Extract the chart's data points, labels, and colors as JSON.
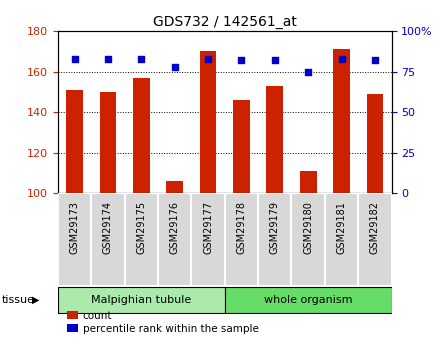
{
  "title": "GDS732 / 142561_at",
  "samples": [
    "GSM29173",
    "GSM29174",
    "GSM29175",
    "GSM29176",
    "GSM29177",
    "GSM29178",
    "GSM29179",
    "GSM29180",
    "GSM29181",
    "GSM29182"
  ],
  "counts": [
    151,
    150,
    157,
    106,
    170,
    146,
    153,
    111,
    171,
    149
  ],
  "percentiles": [
    83,
    83,
    83,
    78,
    83,
    82,
    82,
    75,
    83,
    82
  ],
  "ylim_left": [
    100,
    180
  ],
  "ylim_right": [
    0,
    100
  ],
  "yticks_left": [
    100,
    120,
    140,
    160,
    180
  ],
  "yticks_right": [
    0,
    25,
    50,
    75,
    100
  ],
  "yticklabels_right": [
    "0",
    "25",
    "50",
    "75",
    "100%"
  ],
  "bar_color": "#cc2200",
  "dot_color": "#0000cc",
  "tissue_groups": [
    {
      "label": "Malpighian tubule",
      "start": 0,
      "end": 5,
      "color": "#aaeaaa"
    },
    {
      "label": "whole organism",
      "start": 5,
      "end": 10,
      "color": "#66dd66"
    }
  ],
  "tissue_label": "tissue",
  "legend_count_label": "count",
  "legend_percentile_label": "percentile rank within the sample",
  "bar_width": 0.5
}
